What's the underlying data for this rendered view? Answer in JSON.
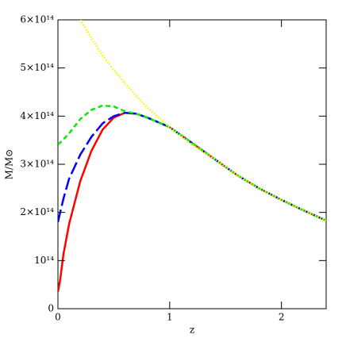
{
  "chart_data": {
    "type": "line",
    "xlabel": "z",
    "ylabel": "M/M⊙",
    "x": [
      0,
      0.02,
      0.05,
      0.1,
      0.2,
      0.3,
      0.4,
      0.5,
      0.6,
      0.7,
      0.8,
      1.0,
      1.2,
      1.4,
      1.6,
      1.8,
      2.0,
      2.2,
      2.4
    ],
    "series": [
      {
        "color": "#ff0000",
        "dash": "solid",
        "values": [
          35000000000000.0,
          60000000000000.0,
          114000000000000.0,
          176000000000000.0,
          265000000000000.0,
          328000000000000.0,
          372000000000000.0,
          397000000000000.0,
          407000000000000.0,
          405000000000000.0,
          397000000000000.0,
          377000000000000.0,
          344000000000000.0,
          311000000000000.0,
          278000000000000.0,
          250000000000000.0,
          226000000000000.0,
          204000000000000.0,
          183000000000000.0
        ]
      },
      {
        "color": "#0000ff",
        "dash": "long-dash",
        "values": [
          180000000000000.0,
          200000000000000.0,
          229000000000000.0,
          270000000000000.0,
          320000000000000.0,
          357000000000000.0,
          385000000000000.0,
          400000000000000.0,
          407000000000000.0,
          405000000000000.0,
          397000000000000.0,
          377000000000000.0,
          344000000000000.0,
          311000000000000.0,
          278000000000000.0,
          250000000000000.0,
          226000000000000.0,
          204000000000000.0,
          183000000000000.0
        ]
      },
      {
        "color": "#00ee00",
        "dash": "dash",
        "values": [
          341000000000000.0,
          345000000000000.0,
          352000000000000.0,
          364000000000000.0,
          394000000000000.0,
          413000000000000.0,
          422000000000000.0,
          420000000000000.0,
          410000000000000.0,
          405000000000000.0,
          397000000000000.0,
          377000000000000.0,
          344000000000000.0,
          311000000000000.0,
          278000000000000.0,
          250000000000000.0,
          226000000000000.0,
          204000000000000.0,
          183000000000000.0
        ]
      },
      {
        "color": "#ffee00",
        "dash": "dot",
        "values": [
          null,
          null,
          null,
          null,
          600000000000000.0,
          562000000000000.0,
          526000000000000.0,
          496000000000000.0,
          468000000000000.0,
          442000000000000.0,
          418000000000000.0,
          377000000000000.0,
          341000000000000.0,
          311000000000000.0,
          278000000000000.0,
          250000000000000.0,
          226000000000000.0,
          204000000000000.0,
          183000000000000.0
        ]
      }
    ],
    "xlim": [
      0,
      2.4
    ],
    "ylim": [
      0,
      600000000000000.0
    ],
    "xticks": [
      0,
      1,
      2
    ],
    "yticks": [
      0,
      {
        "value": 100000000000000.0,
        "label": "10¹⁴"
      },
      {
        "value": 200000000000000.0,
        "label": "2×10¹⁴"
      },
      {
        "value": 300000000000000.0,
        "label": "3×10¹⁴"
      },
      {
        "value": 400000000000000.0,
        "label": "4×10¹⁴"
      },
      {
        "value": 500000000000000.0,
        "label": "5×10¹⁴"
      },
      {
        "value": 600000000000000.0,
        "label": "6×10¹⁴"
      }
    ]
  }
}
